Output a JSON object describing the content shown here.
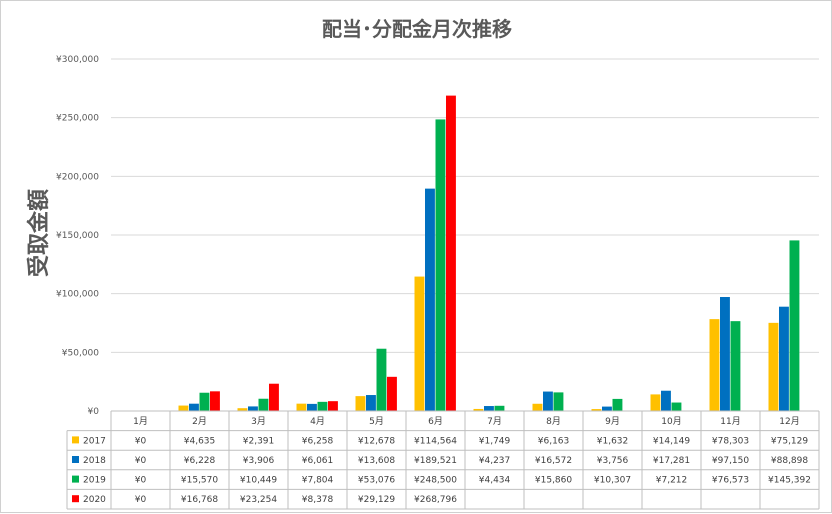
{
  "chart_data": {
    "type": "bar",
    "title": "配当･分配金月次推移",
    "ylabel": "受取金額",
    "xlabel": "",
    "ylim": [
      0,
      300000
    ],
    "yticks": [
      "¥0",
      "¥50,000",
      "¥100,000",
      "¥150,000",
      "¥200,000",
      "¥250,000",
      "¥300,000"
    ],
    "categories": [
      "1月",
      "2月",
      "3月",
      "4月",
      "5月",
      "6月",
      "7月",
      "8月",
      "9月",
      "10月",
      "11月",
      "12月"
    ],
    "grid": true,
    "legend": "data-table-left",
    "series": [
      {
        "name": "2017",
        "color": "#FFC000",
        "values": [
          0,
          4635,
          2391,
          6258,
          12678,
          114564,
          1749,
          6163,
          1632,
          14149,
          78303,
          75129
        ],
        "labels": [
          "¥0",
          "¥4,635",
          "¥2,391",
          "¥6,258",
          "¥12,678",
          "¥114,564",
          "¥1,749",
          "¥6,163",
          "¥1,632",
          "¥14,149",
          "¥78,303",
          "¥75,129"
        ]
      },
      {
        "name": "2018",
        "color": "#0070C0",
        "values": [
          0,
          6228,
          3906,
          6061,
          13608,
          189521,
          4237,
          16572,
          3756,
          17281,
          97150,
          88898
        ],
        "labels": [
          "¥0",
          "¥6,228",
          "¥3,906",
          "¥6,061",
          "¥13,608",
          "¥189,521",
          "¥4,237",
          "¥16,572",
          "¥3,756",
          "¥17,281",
          "¥97,150",
          "¥88,898"
        ]
      },
      {
        "name": "2019",
        "color": "#00B050",
        "values": [
          0,
          15570,
          10449,
          7804,
          53076,
          248500,
          4434,
          15860,
          10307,
          7212,
          76573,
          145392
        ],
        "labels": [
          "¥0",
          "¥15,570",
          "¥10,449",
          "¥7,804",
          "¥53,076",
          "¥248,500",
          "¥4,434",
          "¥15,860",
          "¥10,307",
          "¥7,212",
          "¥76,573",
          "¥145,392"
        ]
      },
      {
        "name": "2020",
        "color": "#FF0000",
        "values": [
          0,
          16768,
          23254,
          8378,
          29129,
          268796,
          null,
          null,
          null,
          null,
          null,
          null
        ],
        "labels": [
          "¥0",
          "¥16,768",
          "¥23,254",
          "¥8,378",
          "¥29,129",
          "¥268,796",
          "",
          "",
          "",
          "",
          "",
          ""
        ]
      }
    ]
  }
}
